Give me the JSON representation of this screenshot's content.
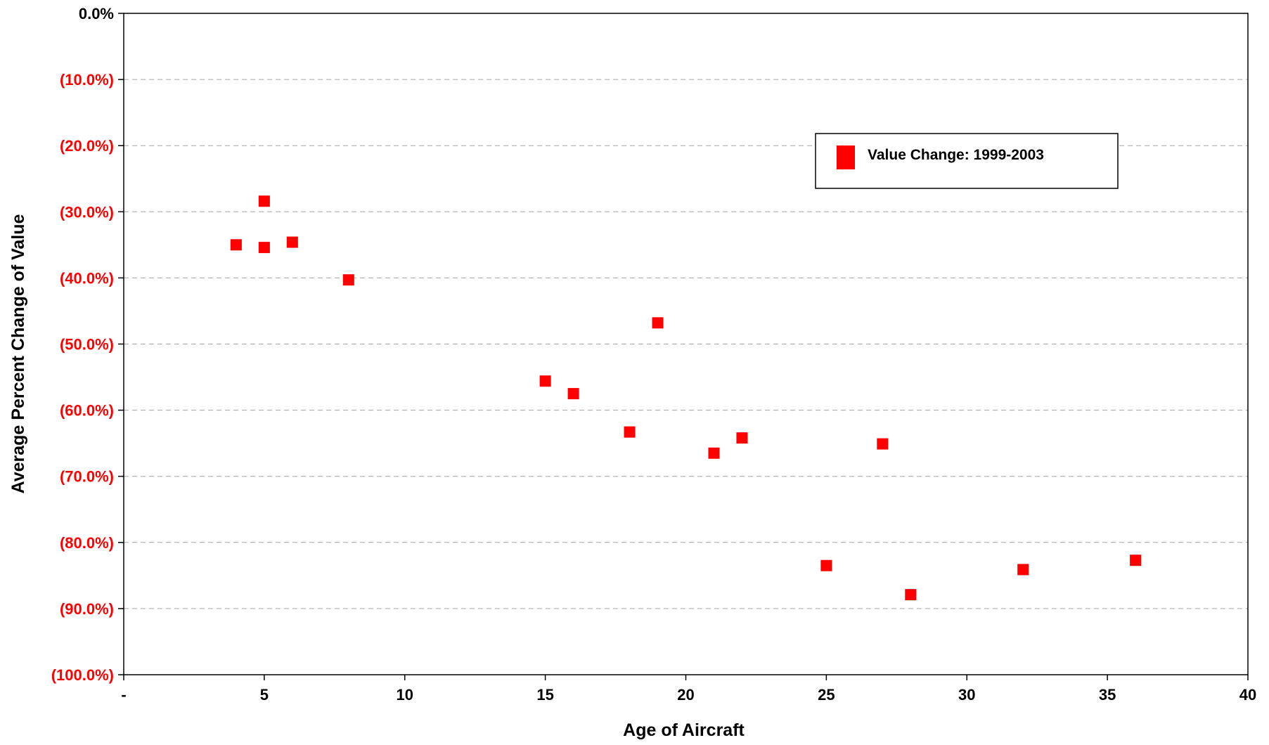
{
  "chart_data": {
    "type": "scatter",
    "title": "",
    "xlabel": "Age of Aircraft",
    "ylabel": "Average Percent Change of Value",
    "xlim": [
      0,
      40
    ],
    "ylim": [
      -100,
      0
    ],
    "x_ticks": [
      {
        "value": 0,
        "label": "-"
      },
      {
        "value": 5,
        "label": "5"
      },
      {
        "value": 10,
        "label": "10"
      },
      {
        "value": 15,
        "label": "15"
      },
      {
        "value": 20,
        "label": "20"
      },
      {
        "value": 25,
        "label": "25"
      },
      {
        "value": 30,
        "label": "30"
      },
      {
        "value": 35,
        "label": "35"
      },
      {
        "value": 40,
        "label": "40"
      }
    ],
    "y_ticks": [
      {
        "value": 0,
        "label": "0.0%",
        "color": "#000000"
      },
      {
        "value": -10,
        "label": "(10.0%)",
        "color": "#ff0000"
      },
      {
        "value": -20,
        "label": "(20.0%)",
        "color": "#ff0000"
      },
      {
        "value": -30,
        "label": "(30.0%)",
        "color": "#ff0000"
      },
      {
        "value": -40,
        "label": "(40.0%)",
        "color": "#ff0000"
      },
      {
        "value": -50,
        "label": "(50.0%)",
        "color": "#ff0000"
      },
      {
        "value": -60,
        "label": "(60.0%)",
        "color": "#ff0000"
      },
      {
        "value": -70,
        "label": "(70.0%)",
        "color": "#ff0000"
      },
      {
        "value": -80,
        "label": "(80.0%)",
        "color": "#ff0000"
      },
      {
        "value": -90,
        "label": "(90.0%)",
        "color": "#ff0000"
      },
      {
        "value": -100,
        "label": "(100.0%)",
        "color": "#ff0000"
      }
    ],
    "grid": {
      "horizontal": true,
      "vertical": false,
      "style": "dashed"
    },
    "legend": {
      "position": "top-right"
    },
    "series": [
      {
        "name": "Value Change: 1999-2003",
        "color": "#ff0000",
        "marker": "square",
        "points": [
          {
            "x": 4,
            "y": -35.0
          },
          {
            "x": 5,
            "y": -28.4
          },
          {
            "x": 5,
            "y": -35.4
          },
          {
            "x": 6,
            "y": -34.6
          },
          {
            "x": 8,
            "y": -40.3
          },
          {
            "x": 15,
            "y": -55.6
          },
          {
            "x": 16,
            "y": -57.5
          },
          {
            "x": 18,
            "y": -63.3
          },
          {
            "x": 19,
            "y": -46.8
          },
          {
            "x": 21,
            "y": -66.5
          },
          {
            "x": 22,
            "y": -64.2
          },
          {
            "x": 25,
            "y": -83.5
          },
          {
            "x": 27,
            "y": -65.1
          },
          {
            "x": 28,
            "y": -87.9
          },
          {
            "x": 32,
            "y": -84.1
          },
          {
            "x": 36,
            "y": -82.7
          }
        ]
      }
    ]
  }
}
